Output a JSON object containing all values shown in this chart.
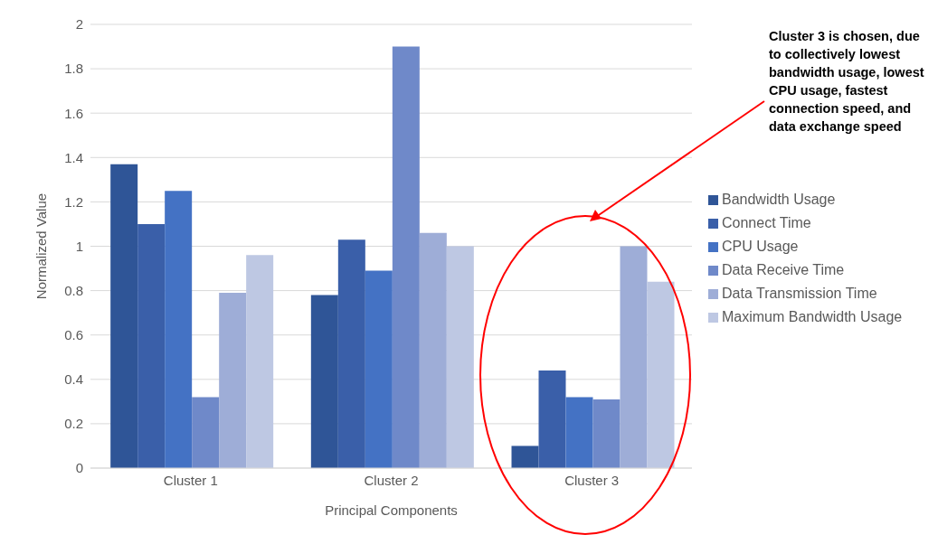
{
  "chart_data": {
    "type": "bar",
    "xlabel": "Principal Components",
    "ylabel": "Normalized Value",
    "categories": [
      "Cluster 1",
      "Cluster 2",
      "Cluster 3"
    ],
    "series": [
      {
        "name": "Bandwidth Usage",
        "color": "#2f5597",
        "values": [
          1.37,
          0.78,
          0.1
        ]
      },
      {
        "name": "Connect Time",
        "color": "#3a5fa9",
        "values": [
          1.1,
          1.03,
          0.44
        ]
      },
      {
        "name": "CPU Usage",
        "color": "#4472c4",
        "values": [
          1.25,
          0.89,
          0.32
        ]
      },
      {
        "name": "Data Receive Time",
        "color": "#6f89c9",
        "values": [
          0.32,
          1.9,
          0.31
        ]
      },
      {
        "name": "Data Transmission Time",
        "color": "#9eadd7",
        "values": [
          0.79,
          1.06,
          1.0
        ]
      },
      {
        "name": "Maximum Bandwidth Usage",
        "color": "#bec8e3",
        "values": [
          0.96,
          1.0,
          0.84
        ]
      }
    ],
    "ylim": [
      0,
      2
    ],
    "yticks": [
      0,
      0.2,
      0.4,
      0.6,
      0.8,
      1,
      1.2,
      1.4,
      1.6,
      1.8,
      2
    ],
    "grid": "y",
    "legend": "right",
    "annotations": [
      "Cluster 3 is chosen, due to collectively lowest bandwidth usage, lowest CPU usage, fastest connection speed, and data exchange speed"
    ]
  }
}
